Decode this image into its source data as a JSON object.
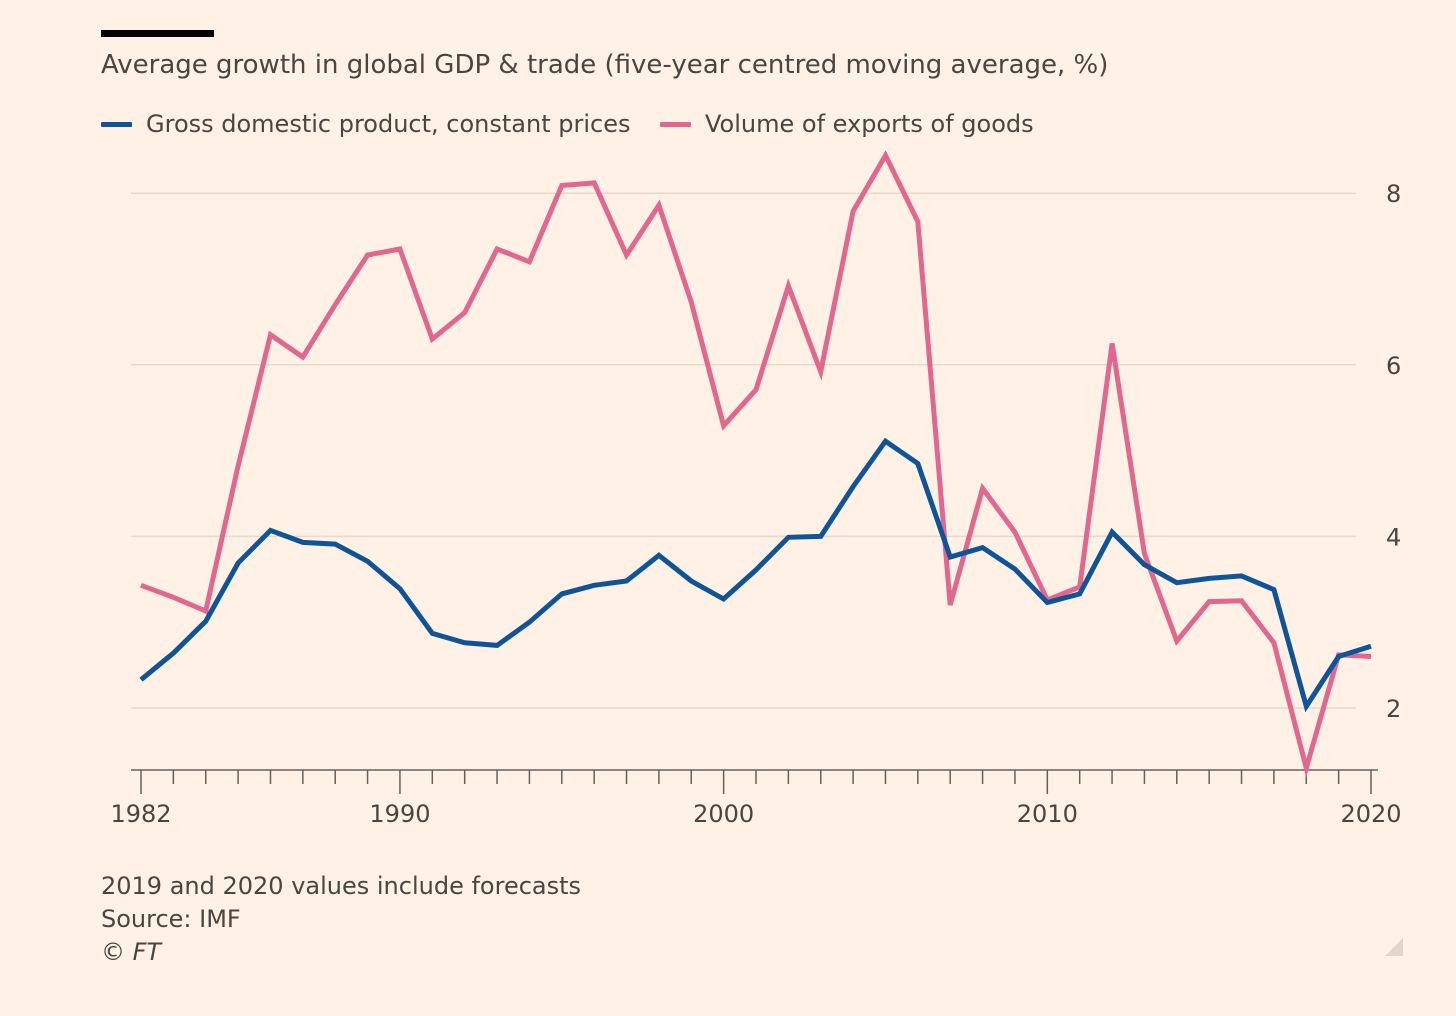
{
  "chart_data": {
    "type": "line",
    "title": "Average growth in global GDP & trade (five-year centred moving average, %)",
    "x": [
      1982,
      1983,
      1984,
      1985,
      1986,
      1987,
      1988,
      1989,
      1990,
      1991,
      1992,
      1993,
      1994,
      1995,
      1996,
      1997,
      1998,
      1999,
      2000,
      2001,
      2002,
      2003,
      2004,
      2005,
      2006,
      2007,
      2008,
      2009,
      2010,
      2011,
      2012,
      2013,
      2014,
      2015,
      2016,
      2017,
      2018,
      2019,
      2020
    ],
    "series": [
      {
        "name": "Gross domestic product, constant prices",
        "color": "#0f5499",
        "values": [
          2.33,
          2.64,
          3.01,
          3.69,
          4.07,
          3.93,
          3.91,
          3.71,
          3.39,
          2.87,
          2.76,
          2.73,
          3.0,
          3.33,
          3.43,
          3.48,
          3.78,
          3.48,
          3.27,
          3.61,
          3.99,
          4.0,
          4.58,
          5.11,
          4.85,
          3.76,
          3.87,
          3.62,
          3.23,
          3.33,
          4.05,
          3.67,
          3.46,
          3.51,
          3.54,
          3.38,
          2.02,
          2.6,
          2.72
        ],
        "width": 5
      },
      {
        "name": "Volume of exports of goods",
        "color": "#e2678f",
        "values": [
          3.43,
          3.29,
          3.13,
          4.82,
          6.35,
          6.09,
          6.7,
          7.28,
          7.35,
          6.3,
          6.61,
          7.35,
          7.2,
          8.09,
          8.12,
          7.28,
          7.86,
          6.73,
          5.29,
          5.71,
          6.92,
          5.92,
          7.79,
          8.44,
          7.67,
          3.2,
          4.56,
          4.05,
          3.26,
          3.41,
          6.25,
          3.8,
          2.78,
          3.24,
          3.25,
          2.76,
          1.3,
          2.62,
          2.6
        ],
        "width": 5
      }
    ],
    "x_ticks": [
      1982,
      1990,
      2000,
      2010,
      2020
    ],
    "y_ticks": [
      2,
      4,
      6,
      8
    ],
    "xlim": [
      1982,
      2020
    ],
    "ylim": [
      1.3,
      8.5
    ],
    "xlabel": "",
    "ylabel": "",
    "grid": true,
    "legend_position": "top-left",
    "colors": {
      "background": "#fff1e5",
      "grid": "#e6d9ce",
      "axis": "#66605c",
      "tick_text": "#4a4541"
    }
  },
  "legend": {
    "gdp_label": "Gross domestic product, constant prices",
    "exports_label": "Volume of exports of goods"
  },
  "footer": {
    "note": "2019 and 2020 values include forecasts",
    "source": "Source: IMF",
    "copyright": "© FT"
  }
}
